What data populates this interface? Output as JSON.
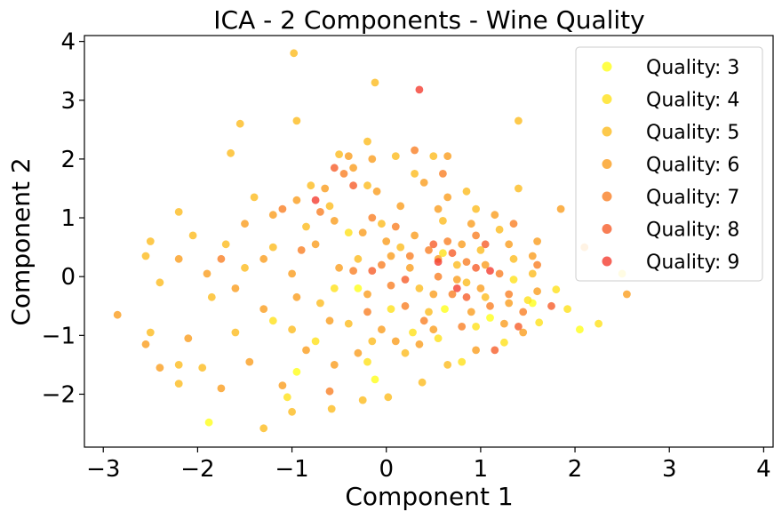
{
  "chart_data": {
    "type": "scatter",
    "title": "ICA - 2 Components - Wine Quality",
    "xlabel": "Component 1",
    "ylabel": "Component 2",
    "xlim": [
      -3.2,
      4.1
    ],
    "ylim": [
      -2.9,
      4.1
    ],
    "xticks": [
      -3,
      -2,
      -1,
      0,
      1,
      2,
      3,
      4
    ],
    "yticks": [
      -2,
      -1,
      0,
      1,
      2,
      3,
      4
    ],
    "xtick_labels": [
      "−3",
      "−2",
      "−1",
      "0",
      "1",
      "2",
      "3",
      "4"
    ],
    "ytick_labels": [
      "−2",
      "−1",
      "0",
      "1",
      "2",
      "3",
      "4"
    ],
    "grid": false,
    "legend_position": "top-right",
    "series": [
      {
        "name": "Quality: 3",
        "color": "#ffff1a",
        "points": [
          [
            -1.88,
            -2.48
          ],
          [
            -0.95,
            -1.62
          ],
          [
            -0.12,
            -1.75
          ],
          [
            0.62,
            -0.55
          ],
          [
            1.55,
            -0.45
          ],
          [
            2.05,
            -0.9
          ],
          [
            1.1,
            -0.7
          ],
          [
            -0.3,
            -0.2
          ]
        ]
      },
      {
        "name": "Quality: 4",
        "color": "#ffe11a",
        "points": [
          [
            -1.05,
            -2.05
          ],
          [
            -0.55,
            -0.2
          ],
          [
            -0.2,
            -1.45
          ],
          [
            0.28,
            -0.95
          ],
          [
            0.55,
            -1.05
          ],
          [
            0.95,
            -0.85
          ],
          [
            1.25,
            -1.12
          ],
          [
            1.5,
            -0.4
          ],
          [
            1.62,
            -0.78
          ],
          [
            1.8,
            -0.22
          ],
          [
            2.25,
            -0.8
          ],
          [
            2.5,
            0.05
          ],
          [
            -0.4,
            0.75
          ],
          [
            0.6,
            0.4
          ],
          [
            -1.2,
            -0.75
          ],
          [
            0.05,
            -0.55
          ],
          [
            1.35,
            -0.05
          ],
          [
            -0.75,
            -1.1
          ],
          [
            0.8,
            -1.45
          ],
          [
            1.92,
            -0.55
          ]
        ]
      },
      {
        "name": "Quality: 5",
        "color": "#fcbb1f",
        "points": [
          [
            -0.98,
            3.8
          ],
          [
            -0.12,
            3.3
          ],
          [
            -1.55,
            2.6
          ],
          [
            -0.95,
            2.65
          ],
          [
            -1.65,
            2.1
          ],
          [
            -0.5,
            2.08
          ],
          [
            -0.2,
            2.3
          ],
          [
            0.1,
            2.05
          ],
          [
            0.5,
            2.05
          ],
          [
            1.4,
            2.65
          ],
          [
            0.85,
            1.45
          ],
          [
            1.4,
            1.5
          ],
          [
            -2.5,
            0.6
          ],
          [
            -2.2,
            1.1
          ],
          [
            -2.55,
            0.35
          ],
          [
            -2.4,
            -0.1
          ],
          [
            -2.5,
            -0.95
          ],
          [
            -2.2,
            -1.5
          ],
          [
            -2.2,
            -1.82
          ],
          [
            -1.95,
            -1.55
          ],
          [
            -1.3,
            -2.58
          ],
          [
            -1.0,
            -2.3
          ],
          [
            -0.58,
            -2.25
          ],
          [
            -0.25,
            -2.1
          ],
          [
            0.02,
            -2.05
          ],
          [
            0.38,
            -1.8
          ],
          [
            0.65,
            -1.5
          ],
          [
            -1.85,
            -0.35
          ],
          [
            -1.5,
            0.15
          ],
          [
            -1.2,
            0.5
          ],
          [
            -0.85,
            0.85
          ],
          [
            -0.6,
            1.2
          ],
          [
            -0.3,
            0.3
          ],
          [
            -0.05,
            0.9
          ],
          [
            0.15,
            0.5
          ],
          [
            0.35,
            -0.2
          ],
          [
            0.45,
            -0.6
          ],
          [
            0.75,
            0.2
          ],
          [
            1.0,
            0.45
          ],
          [
            1.2,
            0.8
          ],
          [
            1.35,
            0.3
          ],
          [
            1.55,
            0.05
          ],
          [
            -0.7,
            -0.45
          ],
          [
            -1.0,
            -0.9
          ],
          [
            -0.4,
            -0.8
          ],
          [
            -0.15,
            -1.1
          ],
          [
            0.2,
            -1.3
          ],
          [
            0.85,
            -0.1
          ],
          [
            1.05,
            -0.35
          ],
          [
            -1.6,
            -0.95
          ],
          [
            -2.05,
            0.7
          ],
          [
            -0.2,
            1.55
          ],
          [
            0.3,
            1.75
          ],
          [
            -0.8,
            1.55
          ],
          [
            0.6,
            0.95
          ],
          [
            -1.4,
            1.35
          ],
          [
            -1.7,
            0.55
          ],
          [
            0.95,
            1.15
          ]
        ]
      },
      {
        "name": "Quality: 6",
        "color": "#fa9e1f",
        "points": [
          [
            -2.85,
            -0.65
          ],
          [
            -2.55,
            -1.15
          ],
          [
            -2.4,
            -1.55
          ],
          [
            -2.1,
            -1.05
          ],
          [
            -1.75,
            -1.9
          ],
          [
            -1.45,
            -1.45
          ],
          [
            -1.1,
            -1.85
          ],
          [
            -0.85,
            -1.25
          ],
          [
            -0.55,
            -1.5
          ],
          [
            -0.3,
            -1.3
          ],
          [
            0.1,
            -1.1
          ],
          [
            0.5,
            -0.9
          ],
          [
            0.9,
            -0.6
          ],
          [
            1.3,
            -0.45
          ],
          [
            1.6,
            -0.25
          ],
          [
            -2.2,
            0.3
          ],
          [
            -1.9,
            0.05
          ],
          [
            -1.6,
            -0.2
          ],
          [
            -1.3,
            0.3
          ],
          [
            -1.0,
            0.05
          ],
          [
            -0.75,
            0.55
          ],
          [
            -0.5,
            0.15
          ],
          [
            -0.2,
            -0.3
          ],
          [
            0.05,
            0.35
          ],
          [
            0.3,
            0.7
          ],
          [
            0.55,
            0.3
          ],
          [
            0.8,
            0.55
          ],
          [
            1.05,
            0.2
          ],
          [
            1.3,
            0.55
          ],
          [
            1.55,
            0.35
          ],
          [
            -1.2,
            1.05
          ],
          [
            -0.95,
            1.3
          ],
          [
            -0.65,
            1.5
          ],
          [
            -0.35,
            1.85
          ],
          [
            -0.1,
            1.45
          ],
          [
            0.15,
            1.2
          ],
          [
            0.4,
            1.6
          ],
          [
            0.65,
            1.35
          ],
          [
            0.9,
            0.9
          ],
          [
            1.15,
            1.05
          ],
          [
            -0.55,
            0.95
          ],
          [
            -0.25,
            0.75
          ],
          [
            0.0,
            0.6
          ],
          [
            0.25,
            0.15
          ],
          [
            0.5,
            -0.3
          ],
          [
            0.75,
            -0.05
          ],
          [
            1.0,
            -0.2
          ],
          [
            1.25,
            -0.8
          ],
          [
            -1.3,
            -0.55
          ],
          [
            -0.95,
            -0.35
          ],
          [
            0.65,
            2.05
          ],
          [
            -0.4,
            2.05
          ],
          [
            1.85,
            1.15
          ],
          [
            2.1,
            0.5
          ],
          [
            2.55,
            -0.3
          ],
          [
            -0.05,
            -0.9
          ],
          [
            0.35,
            -1.15
          ],
          [
            -0.6,
            -0.75
          ],
          [
            1.45,
            -0.95
          ],
          [
            0.95,
            -1.25
          ],
          [
            -1.5,
            0.9
          ],
          [
            -0.15,
            2.0
          ],
          [
            0.55,
            1.15
          ],
          [
            1.6,
            0.6
          ]
        ]
      },
      {
        "name": "Quality: 7",
        "color": "#f97f25",
        "points": [
          [
            -1.75,
            0.3
          ],
          [
            -0.6,
            -1.95
          ],
          [
            -0.35,
            0.1
          ],
          [
            -0.05,
            0.2
          ],
          [
            0.2,
            -0.5
          ],
          [
            0.45,
            0.45
          ],
          [
            0.7,
            -0.3
          ],
          [
            0.95,
            0.7
          ],
          [
            1.2,
            0.05
          ],
          [
            1.45,
            -0.6
          ],
          [
            -0.9,
            0.45
          ],
          [
            -0.7,
            1.1
          ],
          [
            -0.45,
            1.75
          ],
          [
            0.3,
            2.15
          ],
          [
            0.6,
            1.75
          ],
          [
            -0.15,
            1.0
          ],
          [
            0.1,
            0.85
          ],
          [
            0.85,
            0.25
          ],
          [
            1.1,
            -0.5
          ],
          [
            1.35,
            0.9
          ],
          [
            0.4,
            -0.75
          ],
          [
            -0.2,
            -0.6
          ],
          [
            0.55,
            0.0
          ],
          [
            1.6,
            0.2
          ],
          [
            0.8,
            -0.85
          ],
          [
            -1.1,
            1.15
          ],
          [
            0.05,
            -0.15
          ],
          [
            0.65,
            0.6
          ],
          [
            1.3,
            -0.3
          ],
          [
            0.25,
            0.35
          ]
        ]
      },
      {
        "name": "Quality: 8",
        "color": "#f65e2b",
        "points": [
          [
            -0.55,
            1.85
          ],
          [
            -0.35,
            1.55
          ],
          [
            0.7,
            0.4
          ],
          [
            0.95,
            0.15
          ],
          [
            1.15,
            -1.25
          ],
          [
            1.4,
            -0.85
          ],
          [
            0.5,
            0.55
          ],
          [
            0.2,
            -0.05
          ],
          [
            -0.15,
            0.1
          ],
          [
            1.75,
            -0.5
          ],
          [
            0.85,
            -0.35
          ],
          [
            1.05,
            0.55
          ]
        ]
      },
      {
        "name": "Quality: 9",
        "color": "#f43d31",
        "points": [
          [
            0.35,
            3.18
          ],
          [
            -0.75,
            1.3
          ],
          [
            0.55,
            0.25
          ],
          [
            1.1,
            0.1
          ],
          [
            0.75,
            -0.2
          ]
        ]
      }
    ]
  }
}
